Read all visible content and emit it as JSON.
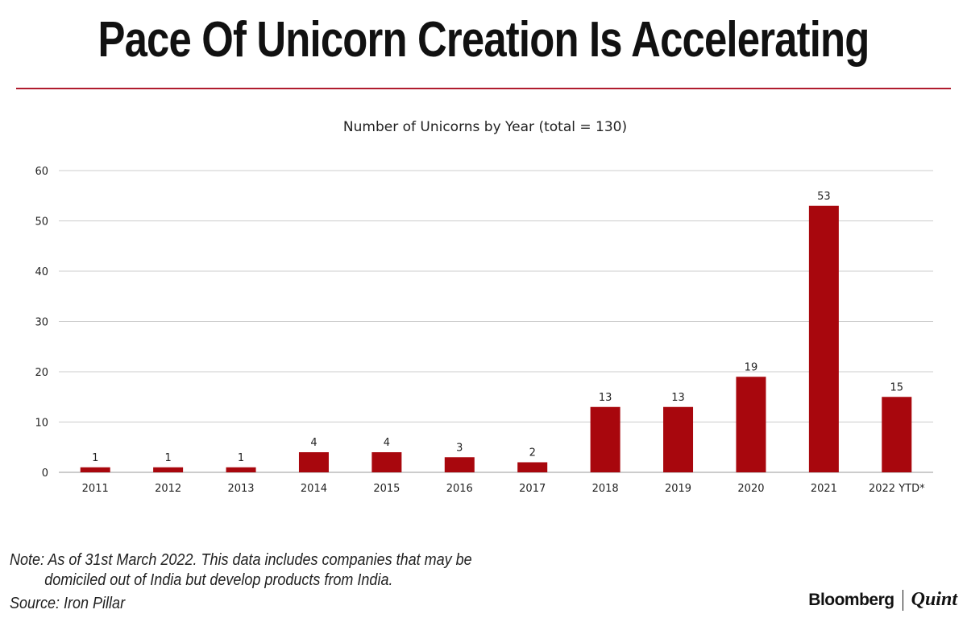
{
  "headline": "Pace Of Unicorn Creation Is Accelerating",
  "note_line1": "Note: As of 31st March 2022. This data includes companies that may be",
  "note_line2": "domiciled out of India but develop products from India.",
  "source": "Source: Iron Pillar",
  "brand": {
    "left": "Bloomberg",
    "right": "Quint"
  },
  "colors": {
    "bar": "#a8070d",
    "rule": "#b01c2e",
    "grid": "#cccccc"
  },
  "chart_data": {
    "type": "bar",
    "title": "Number of Unicorns by Year (total = 130)",
    "xlabel": "",
    "ylabel": "",
    "categories": [
      "2011",
      "2012",
      "2013",
      "2014",
      "2015",
      "2016",
      "2017",
      "2018",
      "2019",
      "2020",
      "2021",
      "2022 YTD*"
    ],
    "values": [
      1,
      1,
      1,
      4,
      4,
      3,
      2,
      13,
      13,
      19,
      53,
      15
    ],
    "ylim": [
      0,
      60
    ],
    "yticks": [
      0,
      10,
      20,
      30,
      40,
      50,
      60
    ],
    "grid": true,
    "legend": "none",
    "data_labels": true
  }
}
